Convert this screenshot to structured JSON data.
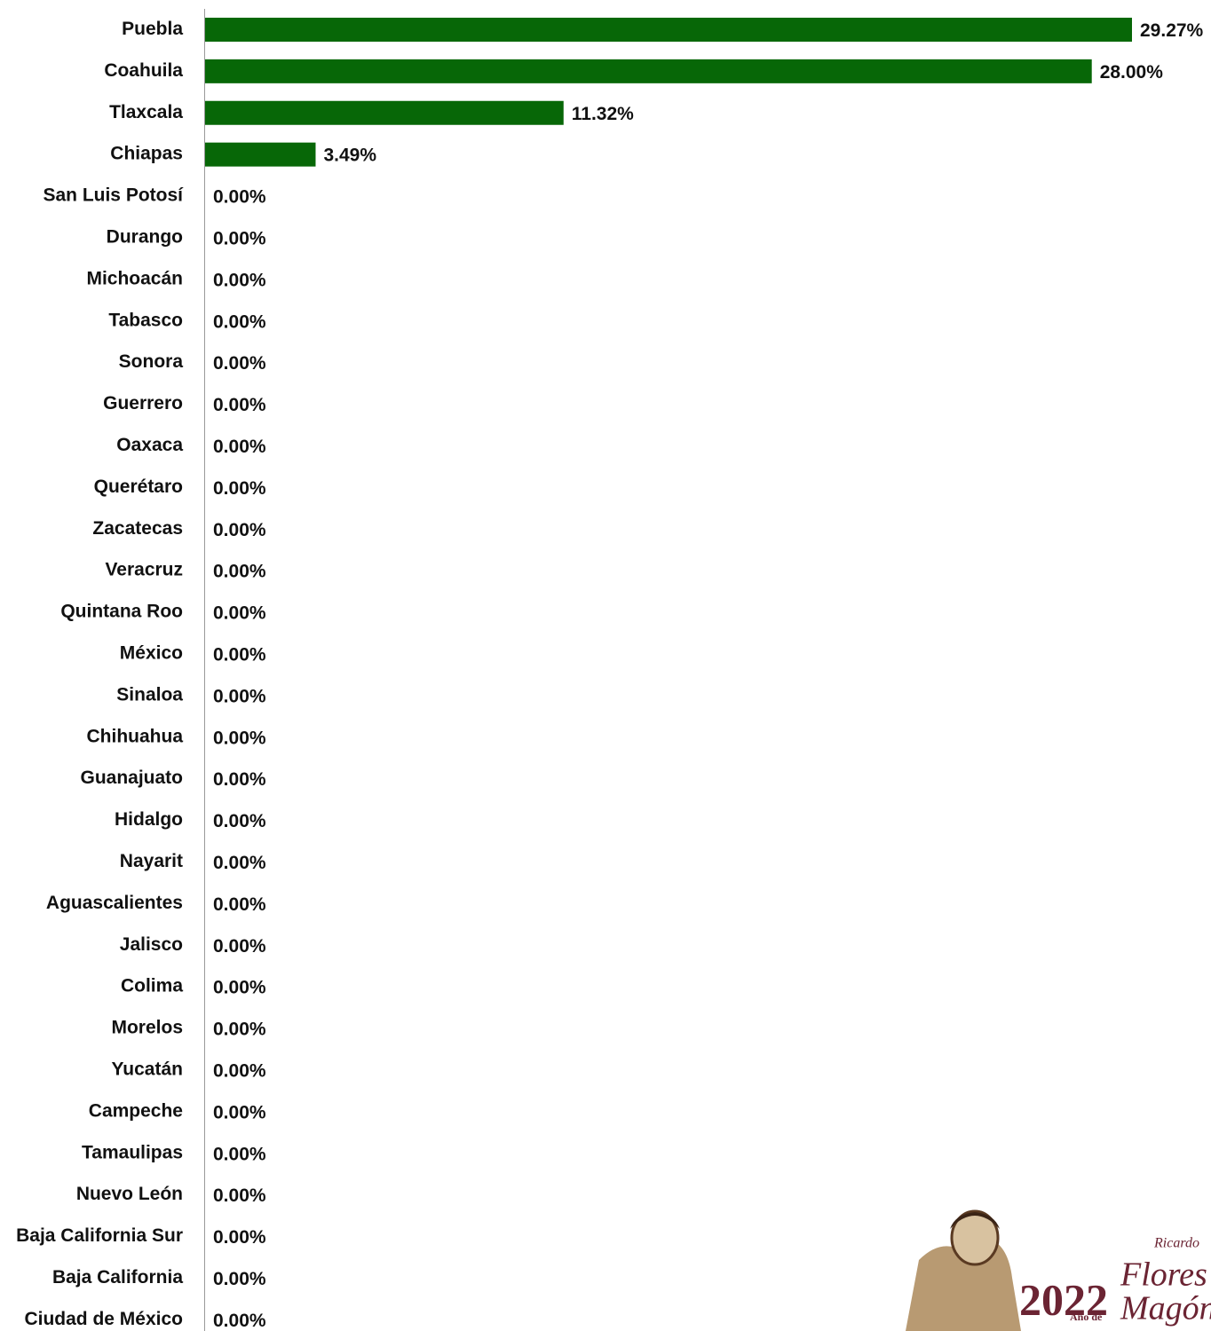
{
  "chart_data": {
    "type": "bar",
    "orientation": "horizontal",
    "color": "#076707",
    "categories": [
      "Puebla",
      "Coahuila",
      "Tlaxcala",
      "Chiapas",
      "San Luis Potosí",
      "Durango",
      "Michoacán",
      "Tabasco",
      "Sonora",
      "Guerrero",
      "Oaxaca",
      "Querétaro",
      "Zacatecas",
      "Veracruz",
      "Quintana Roo",
      "México",
      "Sinaloa",
      "Chihuahua",
      "Guanajuato",
      "Hidalgo",
      "Nayarit",
      "Aguascalientes",
      "Jalisco",
      "Colima",
      "Morelos",
      "Yucatán",
      "Campeche",
      "Tamaulipas",
      "Nuevo León",
      "Baja California Sur",
      "Baja California",
      "Ciudad de México"
    ],
    "values": [
      29.27,
      28.0,
      11.32,
      3.49,
      0,
      0,
      0,
      0,
      0,
      0,
      0,
      0,
      0,
      0,
      0,
      0,
      0,
      0,
      0,
      0,
      0,
      0,
      0,
      0,
      0,
      0,
      0,
      0,
      0,
      0,
      0,
      0
    ],
    "value_labels": [
      "29.27%",
      "28.00%",
      "11.32%",
      "3.49%",
      "0.00%",
      "0.00%",
      "0.00%",
      "0.00%",
      "0.00%",
      "0.00%",
      "0.00%",
      "0.00%",
      "0.00%",
      "0.00%",
      "0.00%",
      "0.00%",
      "0.00%",
      "0.00%",
      "0.00%",
      "0.00%",
      "0.00%",
      "0.00%",
      "0.00%",
      "0.00%",
      "0.00%",
      "0.00%",
      "0.00%",
      "0.00%",
      "0.00%",
      "0.00%",
      "0.00%",
      "0.00%"
    ]
  },
  "logo": {
    "year": "2022",
    "prefix": "Año de",
    "first_name": "Ricardo",
    "surname1": "Flores",
    "surname2": "Magón"
  }
}
